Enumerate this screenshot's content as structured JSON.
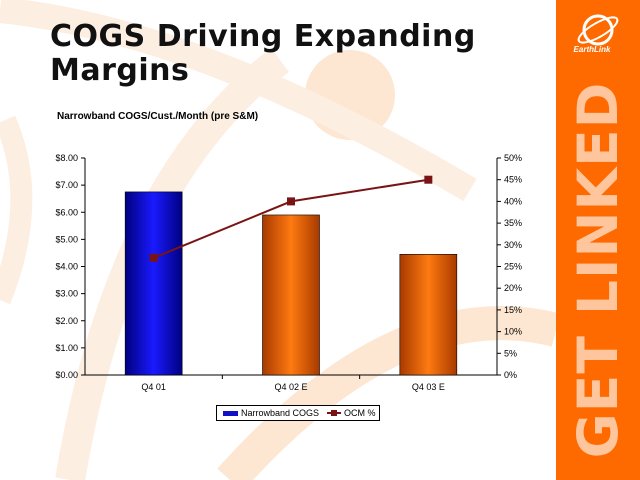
{
  "slide": {
    "title_line1": "COGS Driving Expanding",
    "title_line2": "Margins",
    "subtitle": "Narrowband COGS/Cust./Month (pre S&M)"
  },
  "brand": {
    "logo_text": "EarthLink",
    "tagline": "GET LINKED",
    "accent": "#ff6a00"
  },
  "chart_data": {
    "type": "bar",
    "categories": [
      "Q4 01",
      "Q4 02 E",
      "Q4 03 E"
    ],
    "series": [
      {
        "name": "Narrowband COGS",
        "type": "bar",
        "axis": "left",
        "values": [
          6.75,
          5.9,
          4.45
        ],
        "colors": [
          "#1010c8",
          "#ff6a00",
          "#ff6a00"
        ]
      },
      {
        "name": "OCM %",
        "type": "line",
        "axis": "right",
        "values": [
          27,
          40,
          45
        ],
        "color": "#7a1414"
      }
    ],
    "left_axis": {
      "ylim": [
        0,
        8
      ],
      "ticks": [
        "$0.00",
        "$1.00",
        "$2.00",
        "$3.00",
        "$4.00",
        "$5.00",
        "$6.00",
        "$7.00",
        "$8.00"
      ]
    },
    "right_axis": {
      "ylim": [
        0,
        50
      ],
      "ticks": [
        "0%",
        "5%",
        "10%",
        "15%",
        "20%",
        "25%",
        "30%",
        "35%",
        "40%",
        "45%",
        "50%"
      ]
    },
    "legend_position": "bottom",
    "grid": false
  }
}
